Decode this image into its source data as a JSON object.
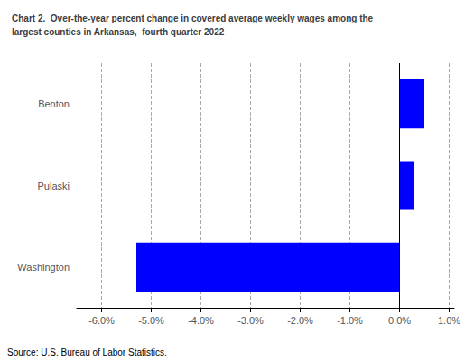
{
  "chart_data": {
    "type": "bar",
    "orientation": "horizontal",
    "title": "Chart 2.  Over-the-year percent change in covered average weekly wages among the\nlargest counties in Arkansas,  fourth quarter 2022",
    "annotation": "Source: U.S. Bureau of Labor Statistics.",
    "categories": [
      "Benton",
      "Pulaski",
      "Washington"
    ],
    "values": [
      0.005,
      0.003,
      -0.053
    ],
    "color": "#0000FF",
    "xlim": [
      -0.065,
      0.011
    ],
    "xticks": [
      {
        "value": -0.06,
        "label": "-6.0%"
      },
      {
        "value": -0.05,
        "label": "-5.0%"
      },
      {
        "value": -0.04,
        "label": "-4.0%"
      },
      {
        "value": -0.03,
        "label": "-3.0%"
      },
      {
        "value": -0.02,
        "label": "-2.0%"
      },
      {
        "value": -0.01,
        "label": "-1.0%"
      },
      {
        "value": 0.0,
        "label": "0.0%"
      },
      {
        "value": 0.01,
        "label": "1.0%"
      }
    ],
    "grid": true
  }
}
